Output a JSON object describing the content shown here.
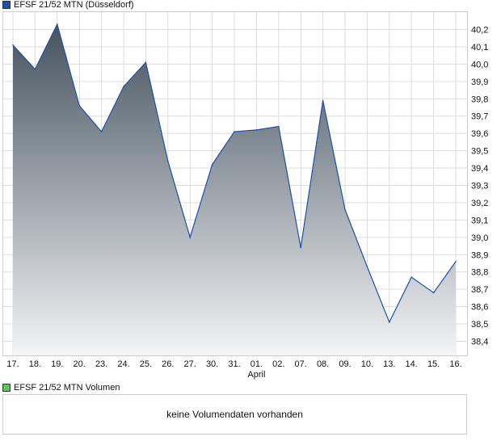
{
  "price_legend": {
    "label": "EFSF 21/52 MTN (Düsseldorf)",
    "color": "#1f4fa8"
  },
  "volume_legend": {
    "label": "EFSF 21/52 MTN Volumen",
    "color": "#5cc45c"
  },
  "volume_message": "keine Volumendaten vorhanden",
  "chart_data": {
    "type": "area",
    "title": "EFSF 21/52 MTN (Düsseldorf)",
    "categories": [
      "17.",
      "18.",
      "19.",
      "20.",
      "23.",
      "24.",
      "25.",
      "26.",
      "27.",
      "30.",
      "31.",
      "01.",
      "02.",
      "07.",
      "08.",
      "09.",
      "10.",
      "13.",
      "14.",
      "15.",
      "16."
    ],
    "month_label": "April",
    "month_label_index": 11,
    "values": [
      40.11,
      39.97,
      40.23,
      39.76,
      39.61,
      39.87,
      40.01,
      39.44,
      39.0,
      39.42,
      39.61,
      39.62,
      39.64,
      38.94,
      39.79,
      39.16,
      38.83,
      38.51,
      38.77,
      38.68,
      38.86
    ],
    "yticks": [
      "40,2",
      "40,1",
      "40,0",
      "39,9",
      "39,8",
      "39,7",
      "39,6",
      "39,5",
      "39,4",
      "39,3",
      "39,2",
      "39,1",
      "39,0",
      "38,9",
      "38,8",
      "38,7",
      "38,6",
      "38,5",
      "38,4"
    ],
    "ylim": [
      38.4,
      40.2
    ],
    "ylabel": "",
    "xlabel": "",
    "grid": true,
    "line_color": "#1f4fa8",
    "fill_top": "#45535f",
    "fill_bottom": "#f3f4f6"
  }
}
